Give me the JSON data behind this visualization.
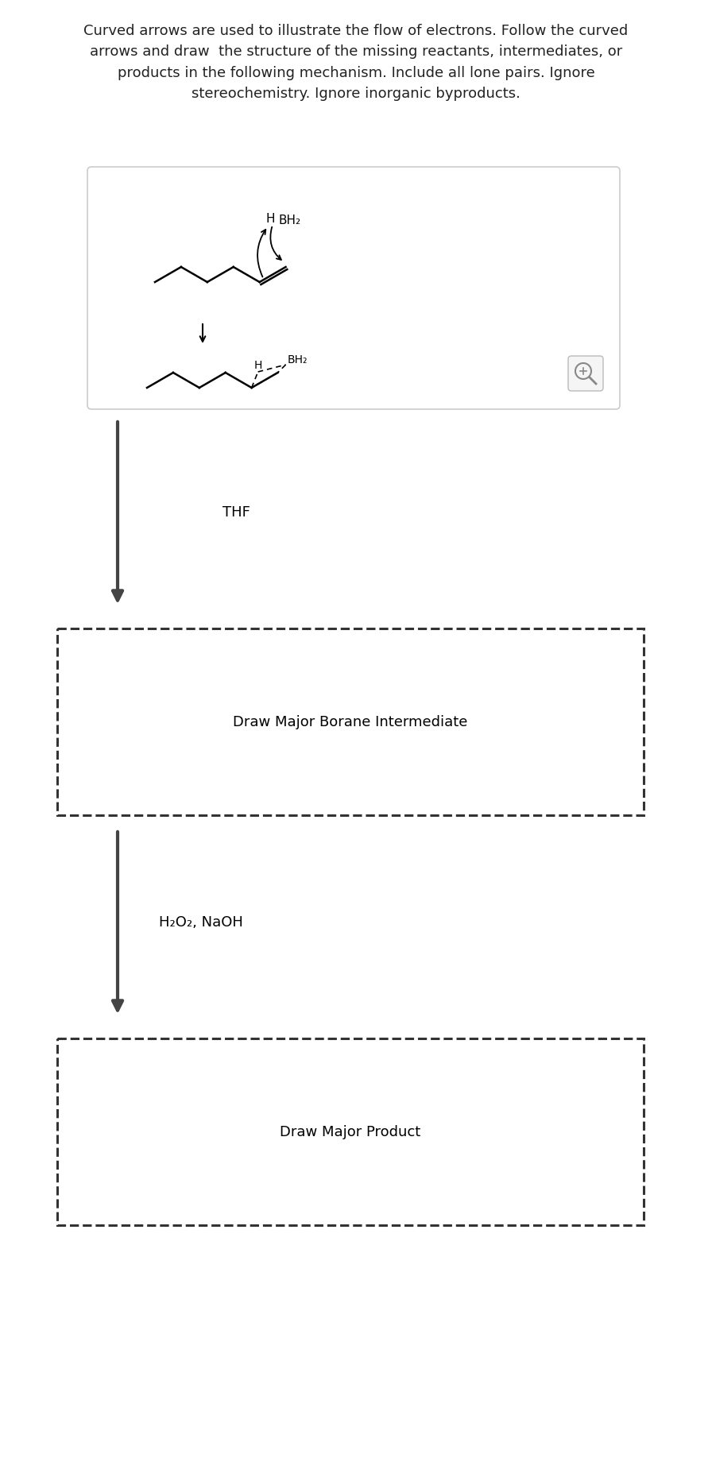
{
  "title_text": "Curved arrows are used to illustrate the flow of electrons. Follow the curved\narrows and draw  the structure of the missing reactants, intermediates, or\nproducts in the following mechanism. Include all lone pairs. Ignore\nstereochemistry. Ignore inorganic byproducts.",
  "title_fontsize": 13,
  "title_color": "#222222",
  "background_color": "#ffffff",
  "top_box_border": "#cccccc",
  "dashed_box_border": "#333333",
  "arrow_color": "#444444",
  "thf_label": "THF",
  "h2o2_label": "H₂O₂, NaOH",
  "borane_label": "Draw Major Borane Intermediate",
  "product_label": "Draw Major Product",
  "label_fontsize": 13,
  "reagent_fontsize": 13
}
